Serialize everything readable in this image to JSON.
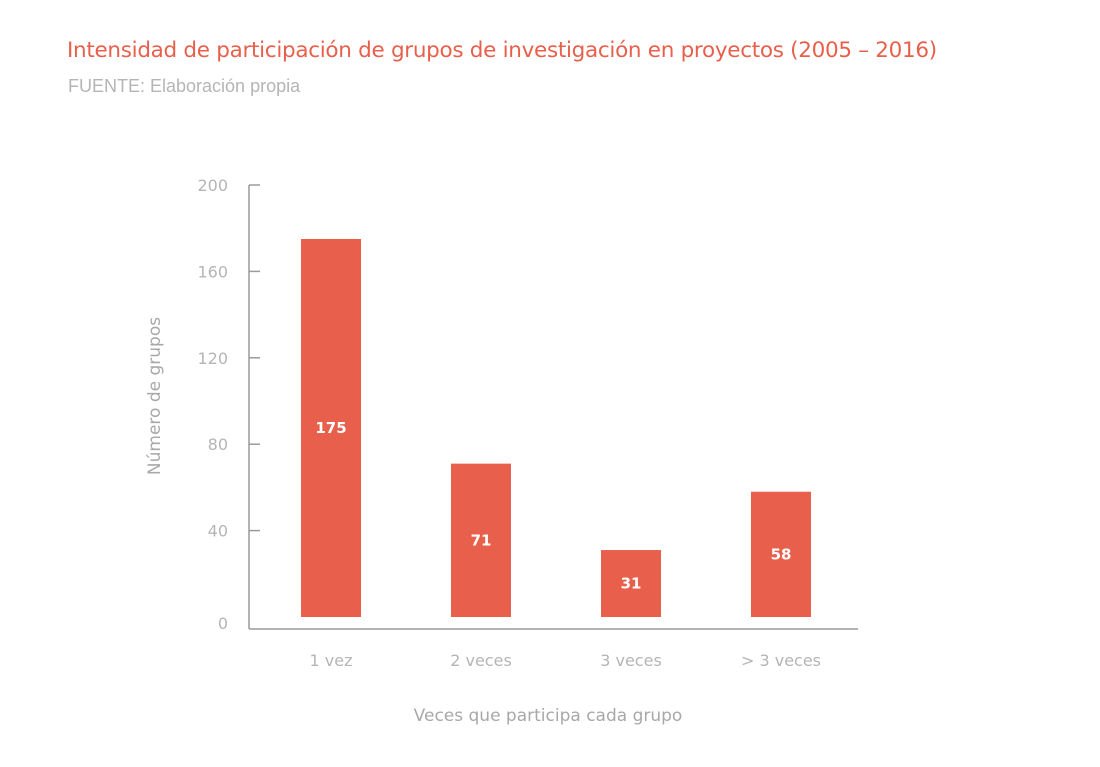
{
  "title": "Intensidad de participación de grupos de investigación en proyectos (2005 – 2016)",
  "subtitle": "FUENTE: Elaboración propia",
  "colors": {
    "title": "#e8604c",
    "bar": "#e8604c",
    "axis": "#9a9a9a",
    "axis_text": "#b5b5b5",
    "bar_label": "#ffffff"
  },
  "chart_data": {
    "type": "bar",
    "categories": [
      "1 vez",
      "2 veces",
      "3 veces",
      "> 3 veces"
    ],
    "values": [
      175,
      71,
      31,
      58
    ],
    "data_labels": [
      "175",
      "71",
      "31",
      "58"
    ],
    "xlabel": "Veces que participa cada grupo",
    "ylabel": "Número de grupos",
    "ylim": [
      0,
      200
    ],
    "yticks": [
      0,
      40,
      80,
      120,
      160,
      200
    ],
    "grid": false,
    "legend": "none"
  }
}
